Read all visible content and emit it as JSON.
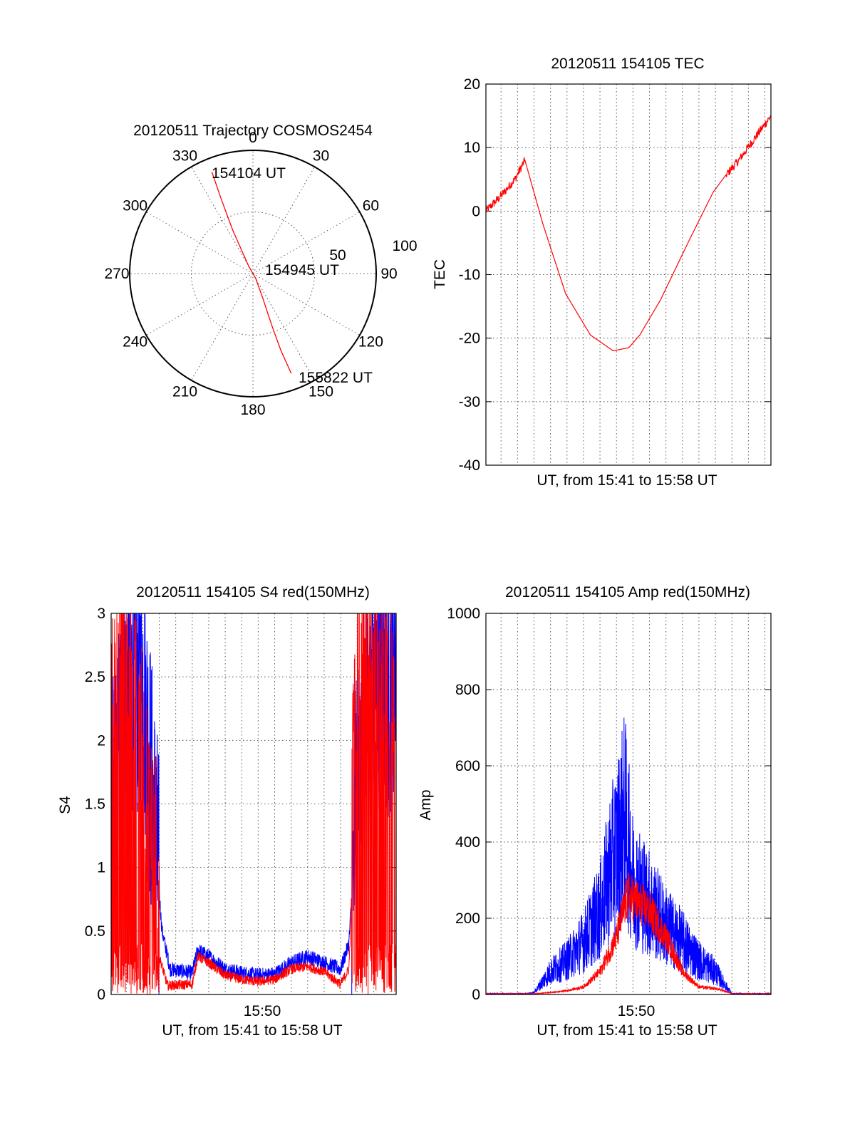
{
  "chart_data": [
    {
      "type": "scatter",
      "kind": "polar-trajectory",
      "title": "20120511 Trajectory COSMOS2454",
      "azimuth_labels": [
        "0",
        "30",
        "60",
        "90",
        "120",
        "150",
        "180",
        "210",
        "240",
        "270",
        "300",
        "330"
      ],
      "elevation_ring_labels": [
        "50",
        "100"
      ],
      "series": [
        {
          "color": "#ff0000",
          "points": [
            {
              "az": 338,
              "el": 10
            },
            {
              "az": 337,
              "el": 30
            },
            {
              "az": 335,
              "el": 55
            },
            {
              "az": 334,
              "el": 72
            },
            {
              "az": 330,
              "el": 84
            },
            {
              "az": 150,
              "el": 86
            },
            {
              "az": 158,
              "el": 72
            },
            {
              "az": 160,
              "el": 50
            },
            {
              "az": 160,
              "el": 30
            },
            {
              "az": 159,
              "el": 12
            }
          ]
        }
      ],
      "annotations": [
        "154104 UT",
        "154945 UT",
        "155822 UT"
      ],
      "grid": true
    },
    {
      "type": "line",
      "title": "20120511 154105 TEC",
      "xlabel": "UT, from 15:41 to 15:58 UT",
      "ylabel": "TEC",
      "xlim": [
        "15:41:05",
        "15:58:22"
      ],
      "ylim": [
        -40,
        20
      ],
      "yticks": [
        "20",
        "10",
        "0",
        "-10",
        "-20",
        "-30",
        "-40"
      ],
      "grid": true,
      "series": [
        {
          "color": "#ff0000",
          "x": [
            "15:41:05",
            "15:42:02",
            "15:42:50",
            "15:43:27",
            "15:44:32",
            "15:45:55",
            "15:47:25",
            "15:48:48",
            "15:49:45",
            "15:50:25",
            "15:51:40",
            "15:53:20",
            "15:54:52",
            "15:55:35",
            "15:56:25",
            "15:57:15",
            "15:58:22"
          ],
          "values": [
            0,
            2.5,
            5,
            8,
            -2,
            -13,
            -19.5,
            -22,
            -21.5,
            -19.5,
            -14,
            -5,
            3,
            5.5,
            8,
            11,
            15
          ]
        }
      ]
    },
    {
      "type": "line",
      "title": "20120511 154105 S4 red(150MHz)",
      "xlabel": "UT, from 15:41 to 15:58 UT",
      "ylabel": "S4",
      "xlim": [
        "15:41:05",
        "15:58:22"
      ],
      "ylim": [
        0,
        3
      ],
      "yticks": [
        "3",
        "2.5",
        "2",
        "1.5",
        "1",
        "0.5",
        "0"
      ],
      "xticks": [
        "15:50"
      ],
      "grid": true,
      "series": [
        {
          "color": "#0000ff",
          "x": [
            "15:41:05",
            "15:42:00",
            "15:43:00",
            "15:43:40",
            "15:44:10",
            "15:44:40",
            "15:46:00",
            "15:46:20",
            "15:47:00",
            "15:48:00",
            "15:49:00",
            "15:50:00",
            "15:51:00",
            "15:52:00",
            "15:53:00",
            "15:54:00",
            "15:55:00",
            "15:55:30",
            "15:56:00",
            "15:57:00",
            "15:58:22"
          ],
          "values": [
            1.3,
            2.4,
            2.5,
            1.4,
            0.5,
            0.2,
            0.17,
            0.35,
            0.3,
            0.2,
            0.17,
            0.15,
            0.16,
            0.25,
            0.3,
            0.25,
            0.2,
            0.4,
            1.5,
            2.6,
            2.4
          ]
        },
        {
          "color": "#ff0000",
          "x": [
            "15:41:05",
            "15:42:00",
            "15:43:00",
            "15:43:30",
            "15:44:00",
            "15:44:30",
            "15:46:00",
            "15:46:20",
            "15:47:00",
            "15:48:00",
            "15:49:00",
            "15:50:00",
            "15:51:00",
            "15:52:00",
            "15:53:00",
            "15:54:00",
            "15:55:00",
            "15:55:30",
            "15:56:00",
            "15:57:00",
            "15:58:22"
          ],
          "values": [
            1.5,
            2.2,
            1.2,
            0.6,
            0.3,
            0.07,
            0.08,
            0.3,
            0.25,
            0.15,
            0.12,
            0.1,
            0.12,
            0.2,
            0.22,
            0.18,
            0.08,
            0.2,
            1.8,
            2.0,
            1.5
          ]
        }
      ]
    },
    {
      "type": "line",
      "title": "20120511 154105 Amp red(150MHz)",
      "xlabel": "UT, from 15:41 to 15:58 UT",
      "ylabel": "Amp",
      "xlim": [
        "15:41:05",
        "15:58:22"
      ],
      "ylim": [
        0,
        1000
      ],
      "yticks": [
        "1000",
        "800",
        "600",
        "400",
        "200",
        "0"
      ],
      "xticks": [
        "15:50"
      ],
      "grid": true,
      "series": [
        {
          "color": "#0000ff",
          "x": [
            "15:41:05",
            "15:43:30",
            "15:44:00",
            "15:45:00",
            "15:46:00",
            "15:47:00",
            "15:48:00",
            "15:48:40",
            "15:49:00",
            "15:49:30",
            "15:50:00",
            "15:51:00",
            "15:52:00",
            "15:53:00",
            "15:54:00",
            "15:55:00",
            "15:55:30",
            "15:56:00",
            "15:58:22"
          ],
          "values": [
            2,
            2,
            5,
            60,
            90,
            140,
            220,
            340,
            380,
            470,
            300,
            240,
            180,
            140,
            90,
            60,
            30,
            2,
            2
          ]
        },
        {
          "color": "#ff0000",
          "x": [
            "15:41:05",
            "15:44:00",
            "15:45:00",
            "15:46:00",
            "15:47:00",
            "15:48:00",
            "15:49:00",
            "15:49:40",
            "15:50:00",
            "15:51:00",
            "15:52:00",
            "15:53:00",
            "15:54:00",
            "15:55:00",
            "15:55:30",
            "15:56:00",
            "15:58:22"
          ],
          "values": [
            2,
            2,
            5,
            10,
            20,
            60,
            150,
            260,
            250,
            220,
            150,
            60,
            20,
            15,
            10,
            2,
            2
          ]
        }
      ]
    }
  ]
}
